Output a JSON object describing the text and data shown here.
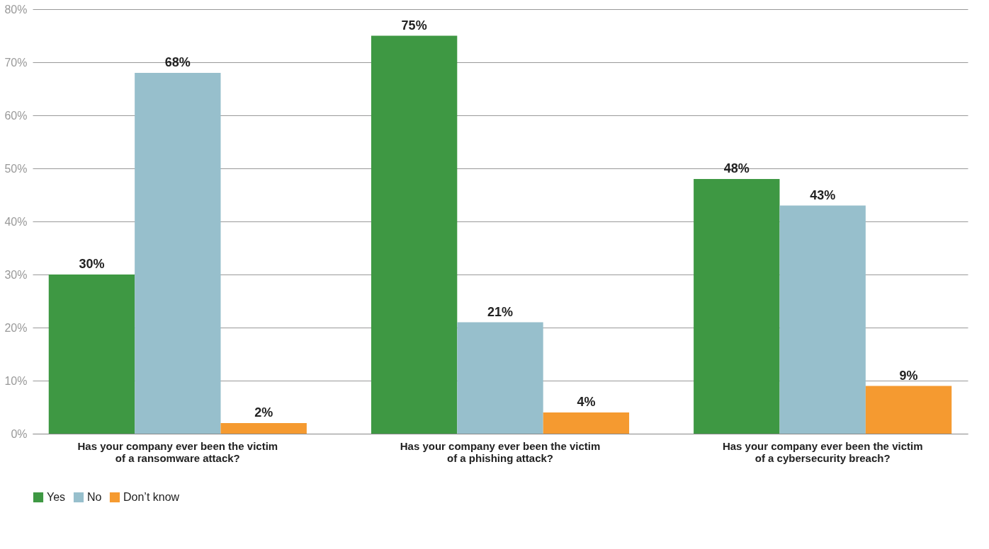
{
  "chart_data": {
    "type": "bar",
    "categories": [
      "Has your company ever been the victim\nof a ransomware attack?",
      "Has your company ever been the victim\nof a phishing attack?",
      "Has your company ever been the victim\nof a cybersecurity breach?"
    ],
    "series": [
      {
        "name": "Yes",
        "color": "#3e9843",
        "values": [
          30,
          75,
          48
        ],
        "value_labels": [
          "30%",
          "75%",
          "48%"
        ]
      },
      {
        "name": "No",
        "color": "#97bfcc",
        "values": [
          68,
          21,
          43
        ],
        "value_labels": [
          "68%",
          "21%",
          "43%"
        ]
      },
      {
        "name": "Don’t know",
        "color": "#f59a30",
        "values": [
          2,
          4,
          9
        ],
        "value_labels": [
          "2%",
          "4%",
          "9%"
        ]
      }
    ],
    "ylim": [
      0,
      80
    ],
    "yticks": [
      {
        "value": 0,
        "label": "0%"
      },
      {
        "value": 10,
        "label": "10%"
      },
      {
        "value": 20,
        "label": "20%"
      },
      {
        "value": 30,
        "label": "30%"
      },
      {
        "value": 40,
        "label": "40%"
      },
      {
        "value": 50,
        "label": "50%"
      },
      {
        "value": 60,
        "label": "60%"
      },
      {
        "value": 70,
        "label": "70%"
      },
      {
        "value": 80,
        "label": "80%"
      }
    ],
    "grid": "y",
    "legend": "bottom left"
  }
}
